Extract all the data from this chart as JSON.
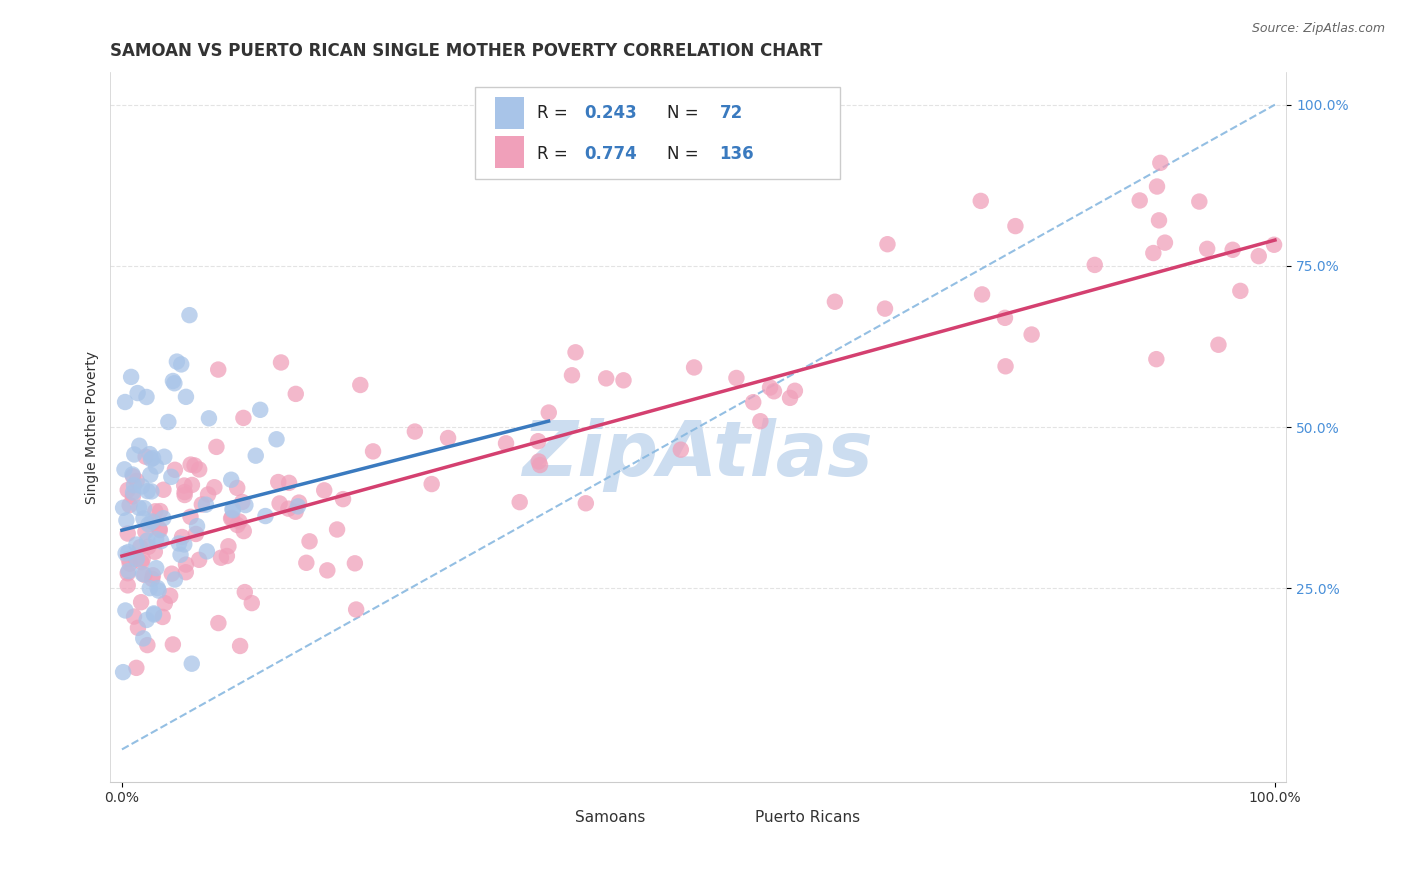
{
  "title": "SAMOAN VS PUERTO RICAN SINGLE MOTHER POVERTY CORRELATION CHART",
  "source": "Source: ZipAtlas.com",
  "ylabel": "Single Mother Poverty",
  "samoan_R": 0.243,
  "samoan_N": 72,
  "puerto_rican_R": 0.774,
  "puerto_rican_N": 136,
  "samoan_color": "#a8c4e8",
  "puerto_rican_color": "#f0a0ba",
  "samoan_line_color": "#3a7abf",
  "puerto_rican_line_color": "#d44070",
  "ref_line_color": "#88b8e0",
  "background_color": "#ffffff",
  "watermark_color": "#ccddf0",
  "grid_color": "#dddddd",
  "ytick_color": "#4a90d9",
  "title_color": "#333333",
  "label_color": "#333333",
  "source_color": "#666666",
  "title_fontsize": 12,
  "axis_label_fontsize": 10,
  "tick_fontsize": 10,
  "legend_text_color": "#222222",
  "legend_val_color": "#3a7abf"
}
